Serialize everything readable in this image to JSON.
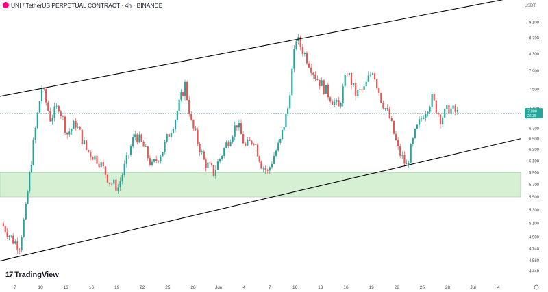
{
  "header": {
    "symbol": "UNI / TetherUS PERPETUAL CONTRACT · 4h · BINANCE",
    "currency": "USDT",
    "brand": "TradingView"
  },
  "colors": {
    "up": "#26a69a",
    "down": "#ef5350",
    "channel": "#000000",
    "zone_fill": "#d6f0d4",
    "zone_border": "#a9d9a5",
    "price_tag": "#26a69a"
  },
  "chart_data": {
    "type": "candlestick",
    "y_scale": "log",
    "ylim": [
      4.35,
      9.4
    ],
    "y_ticks": [
      "9.100",
      "8.700",
      "8.300",
      "7.900",
      "7.500",
      "7.100",
      "6.700",
      "6.500",
      "6.300",
      "6.100",
      "5.900",
      "5.700",
      "5.500",
      "5.300",
      "5.100",
      "4.900",
      "4.740",
      "4.580",
      "4.440"
    ],
    "x_ticks": [
      "7",
      "10",
      "13",
      "16",
      "19",
      "22",
      "25",
      "28",
      "Jun",
      "4",
      "7",
      "10",
      "13",
      "16",
      "19",
      "22",
      "25",
      "28",
      "Jul",
      "4"
    ],
    "last_price": "7.000",
    "last_countdown": "26:35",
    "demand_zone": {
      "low": 5.5,
      "high": 5.9
    },
    "channel_upper": [
      [
        "7",
        7.41
      ],
      [
        "Jul",
        9.55
      ]
    ],
    "channel_lower": [
      [
        "7",
        4.62
      ],
      [
        "Jul",
        6.3
      ]
    ],
    "price_path": [
      [
        "7",
        5.1
      ],
      [
        "7",
        4.85
      ],
      [
        "7",
        4.78
      ],
      [
        "7",
        5.3
      ],
      [
        "10",
        6.4
      ],
      [
        "10",
        7.55
      ],
      [
        "10",
        6.9
      ],
      [
        "13",
        7.15
      ],
      [
        "13",
        6.6
      ],
      [
        "13",
        6.8
      ],
      [
        "16",
        6.3
      ],
      [
        "16",
        6.1
      ],
      [
        "19",
        5.75
      ],
      [
        "19",
        5.65
      ],
      [
        "19",
        6.1
      ],
      [
        "22",
        6.6
      ],
      [
        "22",
        6.35
      ],
      [
        "22",
        6.0
      ],
      [
        "25",
        6.3
      ],
      [
        "25",
        6.9
      ],
      [
        "28",
        7.6
      ],
      [
        "28",
        6.8
      ],
      [
        "28",
        6.45
      ],
      [
        "28",
        6.1
      ],
      [
        "Jun",
        5.9
      ],
      [
        "Jun",
        6.4
      ],
      [
        "4",
        6.8
      ],
      [
        "4",
        6.35
      ],
      [
        "4",
        6.5
      ],
      [
        "7",
        6.05
      ],
      [
        "7",
        5.9
      ],
      [
        "7",
        6.2
      ],
      [
        "7",
        6.45
      ],
      [
        "10",
        7.1
      ],
      [
        "10",
        8.7
      ],
      [
        "10",
        8.3
      ],
      [
        "13",
        7.8
      ],
      [
        "13",
        7.4
      ],
      [
        "16",
        7.1
      ],
      [
        "16",
        7.9
      ],
      [
        "16",
        7.4
      ],
      [
        "19",
        7.5
      ],
      [
        "19",
        7.95
      ],
      [
        "19",
        7.3
      ],
      [
        "22",
        6.9
      ],
      [
        "22",
        6.3
      ],
      [
        "22",
        6.0
      ],
      [
        "25",
        6.6
      ],
      [
        "25",
        7.0
      ],
      [
        "25",
        7.3
      ],
      [
        "28",
        6.9
      ],
      [
        "28",
        7.1
      ],
      [
        "28",
        7.0
      ]
    ]
  }
}
